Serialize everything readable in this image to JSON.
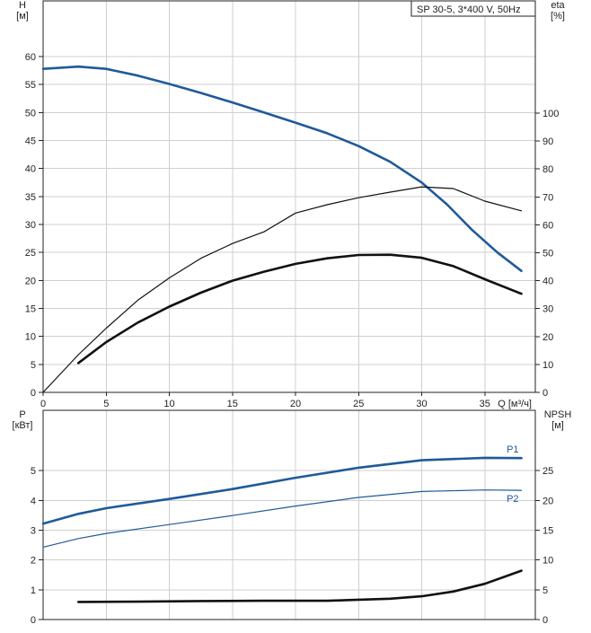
{
  "chart_data": [
    {
      "type": "line",
      "title": "SP 30-5, 3*400 V, 50Hz",
      "xlabel": "Q [м³/ч]",
      "ylabel_left": [
        "H",
        "[м]"
      ],
      "ylabel_right": [
        "eta",
        "[%]"
      ],
      "xlim": [
        0,
        39
      ],
      "ylim_left": [
        0,
        60
      ],
      "ylim_right": [
        0,
        100
      ],
      "x_ticks": [
        0,
        5,
        10,
        15,
        20,
        25,
        30,
        35
      ],
      "y_ticks_left": [
        0,
        5,
        10,
        15,
        20,
        25,
        30,
        35,
        40,
        45,
        50,
        55,
        60
      ],
      "y_ticks_right": [
        0,
        10,
        20,
        30,
        40,
        50,
        60,
        70,
        80,
        90,
        100
      ],
      "grid": true,
      "series": [
        {
          "axis": "left",
          "color": "#1f5a9a",
          "thick": true,
          "x": [
            0,
            2.8,
            5,
            7.5,
            10,
            12.5,
            15,
            17.5,
            20,
            22.5,
            25,
            27.5,
            30,
            32,
            34,
            36,
            37.9
          ],
          "y": [
            57.8,
            58.2,
            57.8,
            56.6,
            55.1,
            53.5,
            51.8,
            50.0,
            48.2,
            46.3,
            44.0,
            41.2,
            37.5,
            33.6,
            29.0,
            25.0,
            21.7
          ]
        },
        {
          "axis": "right",
          "color": "#111111",
          "thick": false,
          "x": [
            0,
            2.8,
            5,
            7.5,
            10,
            12.5,
            15,
            17.5,
            20,
            22.5,
            25,
            27.5,
            30,
            32.5,
            35,
            37.9
          ],
          "y": [
            0,
            13.5,
            23,
            33,
            41,
            48,
            53.3,
            57.5,
            64.2,
            67.2,
            69.7,
            71.7,
            73.6,
            73.0,
            68.5,
            65.0
          ]
        },
        {
          "axis": "right",
          "color": "#111111",
          "thick": true,
          "x": [
            2.8,
            5,
            7.5,
            10,
            12.5,
            15,
            17.5,
            20,
            22.5,
            25,
            27.5,
            30,
            32.5,
            35,
            37.9
          ],
          "y": [
            10.5,
            18,
            25,
            30.7,
            35.7,
            40,
            43.2,
            46,
            48,
            49.2,
            49.3,
            48.2,
            45.2,
            40.5,
            35.3
          ]
        }
      ]
    },
    {
      "type": "line",
      "ylabel_left": [
        "P",
        "[кВт]"
      ],
      "ylabel_right": [
        "NPSH",
        "[м]"
      ],
      "xlim": [
        0,
        39
      ],
      "ylim_left": [
        0,
        6
      ],
      "ylim_right": [
        0,
        30
      ],
      "y_ticks_left": [
        0,
        1,
        2,
        3,
        4,
        5
      ],
      "y_ticks_right": [
        0,
        5,
        10,
        15,
        20,
        25
      ],
      "grid": true,
      "series": [
        {
          "name": "P1",
          "axis": "left",
          "color": "#1f5a9a",
          "thick": true,
          "x": [
            0,
            2.8,
            5,
            10,
            15,
            20,
            25,
            30,
            35,
            37.9
          ],
          "y": [
            3.22,
            3.55,
            3.74,
            4.05,
            4.38,
            4.76,
            5.1,
            5.35,
            5.43,
            5.42
          ]
        },
        {
          "name": "P2",
          "axis": "left",
          "color": "#1f5a9a",
          "thick": false,
          "x": [
            0,
            2.8,
            5,
            10,
            15,
            20,
            25,
            30,
            35,
            37.9
          ],
          "y": [
            2.43,
            2.72,
            2.89,
            3.19,
            3.49,
            3.81,
            4.1,
            4.3,
            4.35,
            4.34
          ]
        },
        {
          "axis": "right",
          "color": "#111111",
          "thick": true,
          "x": [
            2.8,
            7.5,
            12.5,
            17.5,
            22.5,
            27.5,
            30,
            32.5,
            35,
            37.9
          ],
          "y": [
            2.95,
            3.0,
            3.1,
            3.15,
            3.15,
            3.5,
            3.9,
            4.7,
            6.0,
            8.2
          ]
        }
      ]
    }
  ]
}
